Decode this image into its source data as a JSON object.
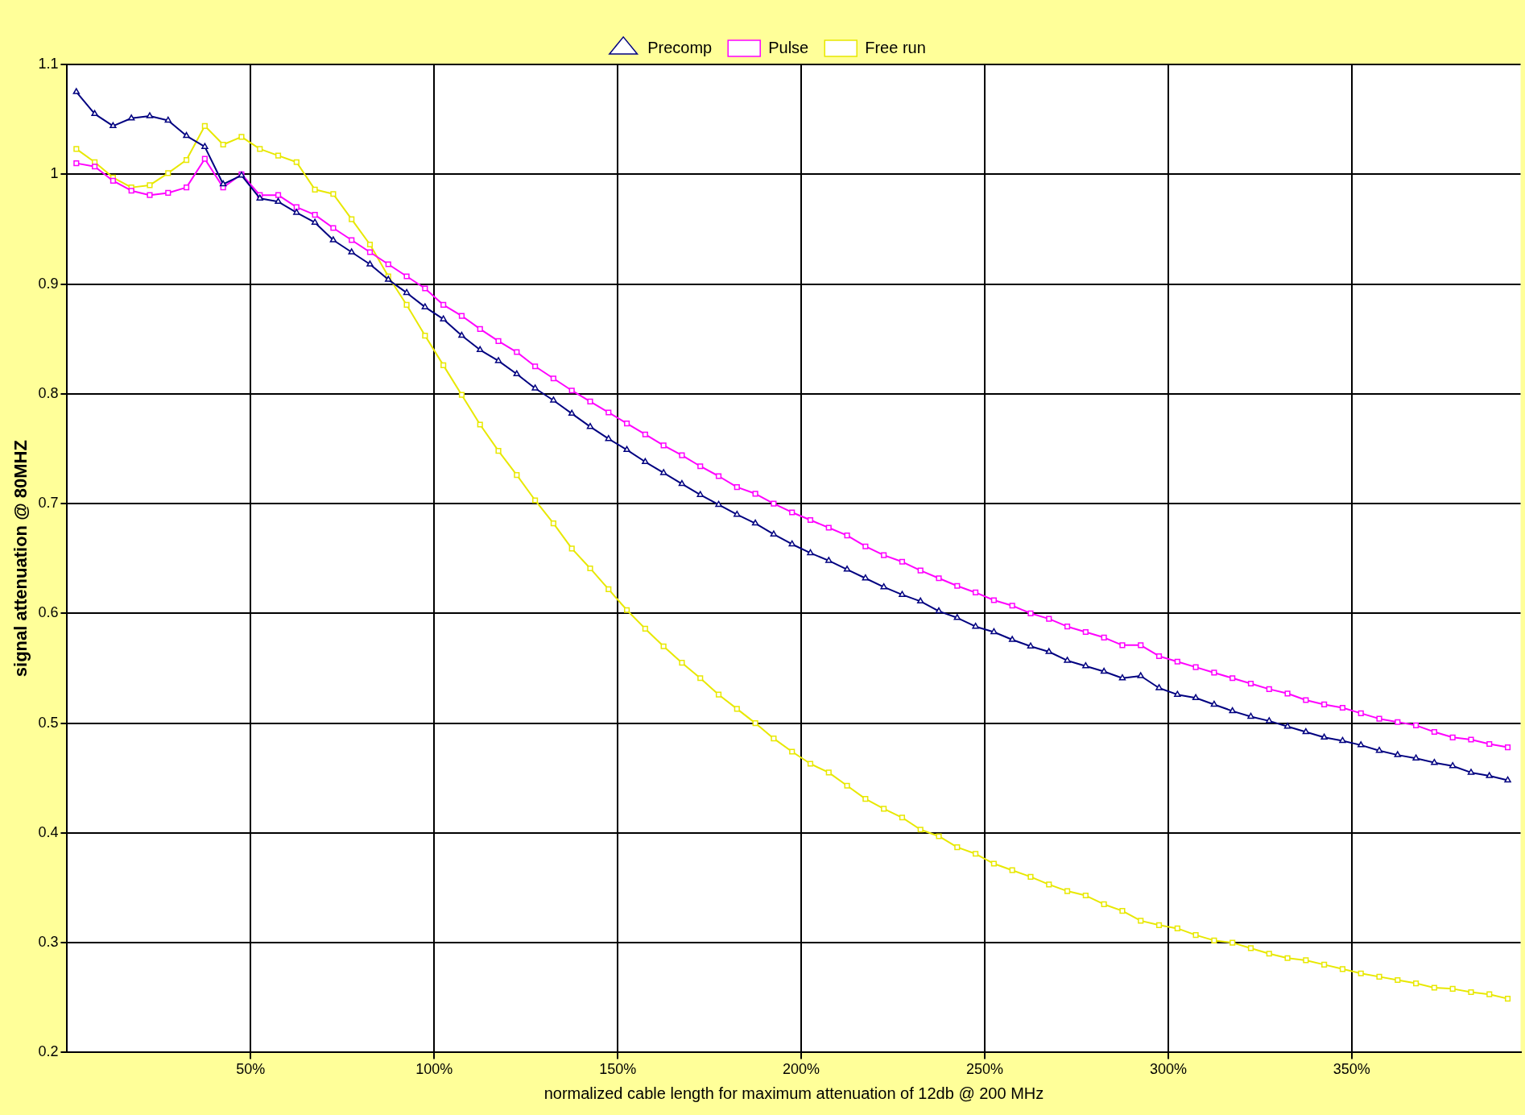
{
  "chart_data": {
    "type": "line",
    "xlabel": "normalized cable length for maximum attenuation of 12db @ 200 MHz",
    "ylabel": "signal attenuation @ 80MHZ",
    "x": [
      2.5,
      7.5,
      12.5,
      17.5,
      22.5,
      27.5,
      32.5,
      37.5,
      42.5,
      47.5,
      52.5,
      57.5,
      62.5,
      67.5,
      72.5,
      77.5,
      82.5,
      87.5,
      92.5,
      97.5,
      102.5,
      107.5,
      112.5,
      117.5,
      122.5,
      127.5,
      132.5,
      137.5,
      142.5,
      147.5,
      152.5,
      157.5,
      162.5,
      167.5,
      172.5,
      177.5,
      182.5,
      187.5,
      192.5,
      197.5,
      202.5,
      207.5,
      212.5,
      217.5,
      222.5,
      227.5,
      232.5,
      237.5,
      242.5,
      247.5,
      252.5,
      257.5,
      262.5,
      267.5,
      272.5,
      277.5,
      282.5,
      287.5,
      292.5,
      297.5,
      302.5,
      307.5,
      312.5,
      317.5,
      322.5,
      327.5,
      332.5,
      337.5,
      342.5,
      347.5,
      352.5,
      357.5,
      362.5,
      367.5,
      372.5,
      377.5,
      382.5,
      387.5,
      392.5
    ],
    "series": [
      {
        "name": "Precomp",
        "color": "#000080",
        "marker": "triangle",
        "values": [
          1.075,
          1.055,
          1.044,
          1.051,
          1.053,
          1.049,
          1.035,
          1.025,
          0.991,
          0.999,
          0.978,
          0.975,
          0.965,
          0.956,
          0.94,
          0.929,
          0.918,
          0.904,
          0.892,
          0.879,
          0.868,
          0.853,
          0.84,
          0.83,
          0.818,
          0.805,
          0.794,
          0.782,
          0.77,
          0.759,
          0.749,
          0.738,
          0.728,
          0.718,
          0.708,
          0.699,
          0.69,
          0.682,
          0.672,
          0.663,
          0.655,
          0.648,
          0.64,
          0.632,
          0.624,
          0.617,
          0.611,
          0.602,
          0.596,
          0.588,
          0.583,
          0.576,
          0.57,
          0.565,
          0.557,
          0.552,
          0.547,
          0.541,
          0.543,
          0.532,
          0.526,
          0.523,
          0.517,
          0.511,
          0.506,
          0.502,
          0.497,
          0.492,
          0.487,
          0.484,
          0.48,
          0.475,
          0.471,
          0.468,
          0.464,
          0.461,
          0.455,
          0.452,
          0.448
        ]
      },
      {
        "name": "Pulse",
        "color": "#ff00ff",
        "marker": "square",
        "values": [
          1.01,
          1.007,
          0.994,
          0.985,
          0.981,
          0.983,
          0.988,
          1.014,
          0.988,
          1.0,
          0.981,
          0.981,
          0.97,
          0.963,
          0.951,
          0.94,
          0.929,
          0.918,
          0.907,
          0.896,
          0.881,
          0.871,
          0.859,
          0.848,
          0.838,
          0.825,
          0.814,
          0.803,
          0.793,
          0.783,
          0.773,
          0.763,
          0.753,
          0.744,
          0.734,
          0.725,
          0.715,
          0.709,
          0.7,
          0.692,
          0.685,
          0.678,
          0.671,
          0.661,
          0.653,
          0.647,
          0.639,
          0.632,
          0.625,
          0.619,
          0.612,
          0.607,
          0.6,
          0.595,
          0.588,
          0.583,
          0.578,
          0.571,
          0.571,
          0.561,
          0.556,
          0.551,
          0.546,
          0.541,
          0.536,
          0.531,
          0.527,
          0.521,
          0.517,
          0.514,
          0.509,
          0.504,
          0.501,
          0.498,
          0.492,
          0.487,
          0.485,
          0.481,
          0.478
        ]
      },
      {
        "name": "Free run",
        "color": "#e8e800",
        "marker": "square",
        "values": [
          1.023,
          1.011,
          0.997,
          0.988,
          0.99,
          1.001,
          1.013,
          1.044,
          1.027,
          1.034,
          1.023,
          1.017,
          1.011,
          0.986,
          0.982,
          0.959,
          0.936,
          0.907,
          0.881,
          0.853,
          0.826,
          0.799,
          0.772,
          0.748,
          0.726,
          0.703,
          0.682,
          0.659,
          0.641,
          0.622,
          0.603,
          0.586,
          0.57,
          0.555,
          0.541,
          0.526,
          0.513,
          0.5,
          0.486,
          0.474,
          0.463,
          0.455,
          0.443,
          0.431,
          0.422,
          0.414,
          0.403,
          0.397,
          0.387,
          0.381,
          0.372,
          0.366,
          0.36,
          0.353,
          0.347,
          0.343,
          0.335,
          0.329,
          0.32,
          0.316,
          0.313,
          0.307,
          0.302,
          0.3,
          0.295,
          0.29,
          0.286,
          0.284,
          0.28,
          0.276,
          0.272,
          0.269,
          0.266,
          0.263,
          0.259,
          0.258,
          0.255,
          0.253,
          0.249
        ]
      }
    ],
    "xlim": [
      0,
      396
    ],
    "xticks": [
      {
        "value": 50,
        "label": "50%"
      },
      {
        "value": 100,
        "label": "100%"
      },
      {
        "value": 150,
        "label": "150%"
      },
      {
        "value": 200,
        "label": "200%"
      },
      {
        "value": 250,
        "label": "250%"
      },
      {
        "value": 300,
        "label": "300%"
      },
      {
        "value": 350,
        "label": "350%"
      }
    ],
    "ylim": [
      0.2,
      1.1
    ],
    "yticks": [
      0.2,
      0.3,
      0.4,
      0.5,
      0.6,
      0.7,
      0.8,
      0.9,
      1,
      1.1
    ],
    "grid": true,
    "legend": "top",
    "line_style": "solid"
  }
}
